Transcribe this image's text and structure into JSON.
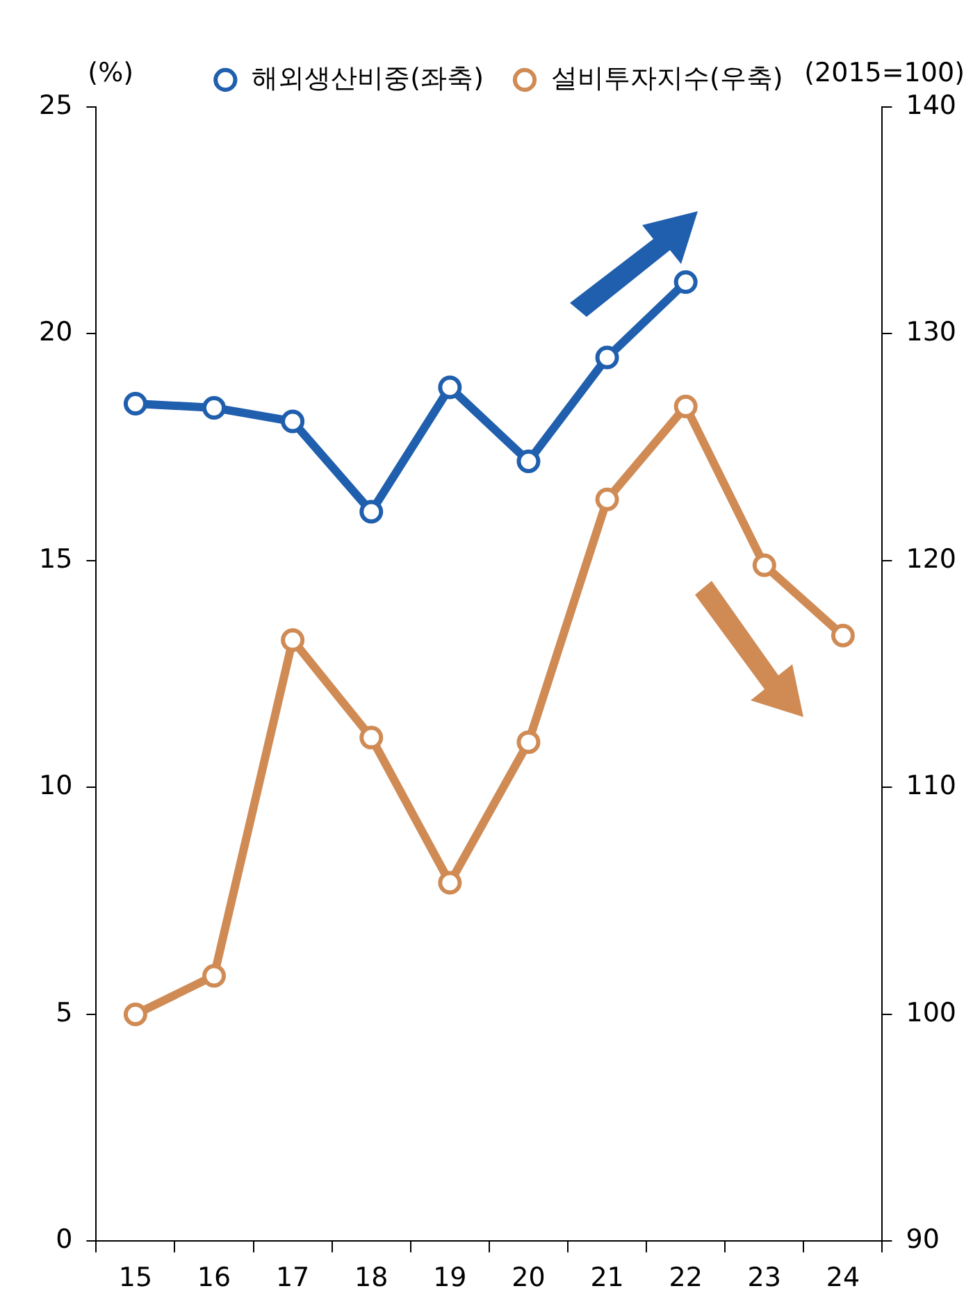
{
  "chart_data": {
    "type": "line",
    "categories": [
      "15",
      "16",
      "17",
      "18",
      "19",
      "20",
      "21",
      "22",
      "23",
      "24"
    ],
    "series": [
      {
        "name": "해외생산비중(좌축)",
        "color": "#1f5fae",
        "values": [
          18.46,
          18.37,
          18.07,
          16.08,
          18.82,
          17.19,
          19.48,
          21.14,
          null,
          null
        ]
      },
      {
        "name": "설비투자지수(우축)",
        "color": "#d08b55",
        "axis": "y2",
        "values": [
          100.0,
          101.7,
          116.5,
          112.2,
          105.8,
          112.0,
          122.7,
          126.8,
          119.8,
          116.7
        ]
      }
    ],
    "ylabel": "(%)",
    "y2label": "(2015=100)",
    "ylim": [
      0,
      25
    ],
    "yticks": [
      0,
      5,
      10,
      15,
      20,
      25
    ],
    "y2lim": [
      90,
      140
    ],
    "y2ticks": [
      90,
      100,
      110,
      120,
      130,
      140
    ],
    "grid": false,
    "legend": "top",
    "marker": "circle",
    "line_style": "solid"
  }
}
